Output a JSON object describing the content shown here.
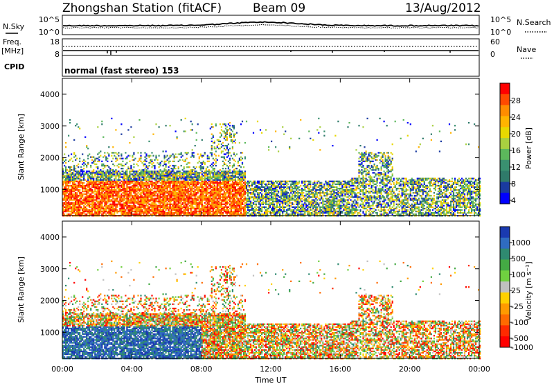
{
  "header": {
    "station": "Zhongshan Station (fitACF)",
    "beam": "Beam 09",
    "date": "13/Aug/2012"
  },
  "top_panels": {
    "nsky_label": "N.Sky",
    "nsky_ticks": [
      "10^5",
      "10^0"
    ],
    "nsearch_label": "N.Search",
    "nsearch_ticks": [
      "10^5",
      "10^0"
    ],
    "freq_label": "Freq.",
    "freq_unit": "[MHz]",
    "freq_ticks": [
      "18",
      "8"
    ],
    "nave_label": "Nave",
    "nave_ticks": [
      "60",
      "0"
    ],
    "cpid_label": "CPID",
    "mode_text": "normal (fast stereo) 153"
  },
  "chart_data": [
    {
      "type": "heatmap",
      "name": "power",
      "ylabel": "Slant Range [km]",
      "yticks": [
        "4000",
        "3000",
        "2000",
        "1000"
      ],
      "ylim": [
        180,
        4500
      ],
      "x_range_hours": [
        0,
        24
      ],
      "colorbar_label": "Power [dB]",
      "colorbar_ticks": [
        "28",
        "24",
        "20",
        "16",
        "12",
        "8",
        "4"
      ],
      "colorbar_colors": [
        "#ff0000",
        "#ff4a00",
        "#ff8c00",
        "#ffb400",
        "#e8d800",
        "#a8d040",
        "#5cb85c",
        "#3a9070",
        "#2f7a6a",
        "#1a3aa0",
        "#0000ff"
      ],
      "range": [
        0,
        30
      ]
    },
    {
      "type": "heatmap",
      "name": "velocity",
      "ylabel": "Slant Range [km]",
      "yticks": [
        "4000",
        "3000",
        "2000",
        "1000"
      ],
      "ylim": [
        180,
        4500
      ],
      "x_range_hours": [
        0,
        24
      ],
      "colorbar_label": "Velocity [m s⁻¹]",
      "colorbar_ticks": [
        "1000",
        "500",
        "100",
        "25",
        "-25",
        "-100",
        "-500",
        "-1000"
      ],
      "colorbar_colors": [
        "#1a3ab0",
        "#2f6cc0",
        "#2f8a70",
        "#44aa44",
        "#70d040",
        "#c0c0c0",
        "#ffd000",
        "#ff9a00",
        "#ff6a00",
        "#ff2a00",
        "#ff0000"
      ],
      "range": [
        -1000,
        1000
      ]
    }
  ],
  "xaxis": {
    "ticks": [
      "00:00",
      "04:00",
      "08:00",
      "12:00",
      "16:00",
      "20:00",
      "00:00"
    ],
    "label": "Time UT"
  }
}
